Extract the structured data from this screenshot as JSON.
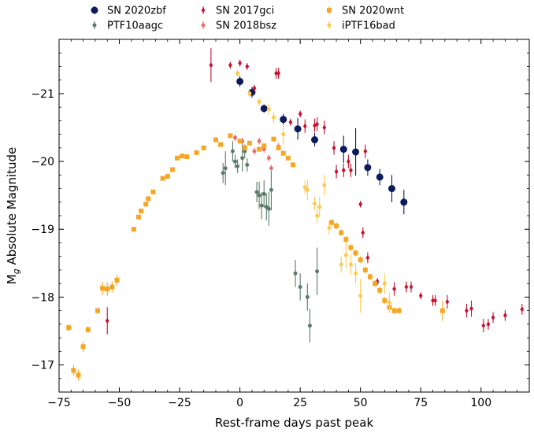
{
  "chart_data": {
    "type": "scatter",
    "xlabel": "Rest-frame days past peak",
    "ylabel": "M",
    "ylabel_subscript": "g",
    "ylabel_suffix": " Absolute Magnitude",
    "xlim": [
      -75,
      120
    ],
    "ylim": [
      -16.6,
      -21.8
    ],
    "y_inverted": true,
    "grid": false,
    "legend_position": "top, above plot",
    "x_ticks": [
      -75,
      -50,
      -25,
      0,
      25,
      50,
      75,
      100
    ],
    "x_tick_labels": [
      "−75",
      "−50",
      "−25",
      "0",
      "25",
      "50",
      "75",
      "100"
    ],
    "y_ticks": [
      -21,
      -20,
      -19,
      -18,
      -17
    ],
    "y_tick_labels": [
      "−21",
      "−20",
      "−19",
      "−18",
      "−17"
    ],
    "series": [
      {
        "name": "SN 2020zbf",
        "color": "#0d1b5e",
        "marker": "circle-large",
        "points": [
          {
            "x": 0,
            "y": -21.18,
            "err": 0.08
          },
          {
            "x": 5,
            "y": -21.02,
            "err": 0.08
          },
          {
            "x": 10,
            "y": -20.78,
            "err": 0.06
          },
          {
            "x": 18,
            "y": -20.62,
            "err": 0.08
          },
          {
            "x": 24,
            "y": -20.48,
            "err": 0.16
          },
          {
            "x": 31,
            "y": -20.32,
            "err": 0.1
          },
          {
            "x": 43,
            "y": -20.18,
            "err": 0.2
          },
          {
            "x": 48,
            "y": -20.14,
            "err": 0.35
          },
          {
            "x": 53,
            "y": -19.91,
            "err": 0.12
          },
          {
            "x": 58,
            "y": -19.77,
            "err": 0.12
          },
          {
            "x": 63,
            "y": -19.6,
            "err": 0.2
          },
          {
            "x": 68,
            "y": -19.4,
            "err": 0.18
          }
        ]
      },
      {
        "name": "PTF10aagc",
        "color": "#5a7a6a",
        "marker": "circle-small",
        "points": [
          {
            "x": -7,
            "y": -19.83,
            "err": 0.15
          },
          {
            "x": -6,
            "y": -19.9,
            "err": 0.25
          },
          {
            "x": -3,
            "y": -20.15,
            "err": 0.15
          },
          {
            "x": -2,
            "y": -20.0,
            "err": 0.1
          },
          {
            "x": -1,
            "y": -19.93,
            "err": 0.1
          },
          {
            "x": 1,
            "y": -20.05,
            "err": 0.2
          },
          {
            "x": 2,
            "y": -20.15,
            "err": 0.1
          },
          {
            "x": 3,
            "y": -19.95,
            "err": 0.1
          },
          {
            "x": 7,
            "y": -19.55,
            "err": 0.15
          },
          {
            "x": 8,
            "y": -19.5,
            "err": 0.2
          },
          {
            "x": 9,
            "y": -19.35,
            "err": 0.2
          },
          {
            "x": 10,
            "y": -19.52,
            "err": 0.2
          },
          {
            "x": 11,
            "y": -19.33,
            "err": 0.2
          },
          {
            "x": 12,
            "y": -19.3,
            "err": 0.25
          },
          {
            "x": 13,
            "y": -19.58,
            "err": 0.3
          },
          {
            "x": 23,
            "y": -18.35,
            "err": 0.2
          },
          {
            "x": 25,
            "y": -18.15,
            "err": 0.2
          },
          {
            "x": 28,
            "y": -18.0,
            "err": 0.2
          },
          {
            "x": 29,
            "y": -17.58,
            "err": 0.25
          },
          {
            "x": 32,
            "y": -18.38,
            "err": 0.35
          }
        ]
      },
      {
        "name": "SN 2017gci",
        "color": "#c8102e",
        "marker": "diamond",
        "points": [
          {
            "x": -12,
            "y": -21.42,
            "err": 0.25
          },
          {
            "x": -4,
            "y": -21.42,
            "err": 0.05
          },
          {
            "x": 0,
            "y": -21.45,
            "err": 0.05
          },
          {
            "x": 3,
            "y": -21.4,
            "err": 0.05
          },
          {
            "x": 6,
            "y": -21.08,
            "err": 0.05
          },
          {
            "x": 15,
            "y": -21.3,
            "err": 0.08
          },
          {
            "x": 16,
            "y": -21.3,
            "err": 0.08
          },
          {
            "x": 21,
            "y": -20.58,
            "err": 0.05
          },
          {
            "x": 25,
            "y": -20.7,
            "err": 0.05
          },
          {
            "x": 27,
            "y": -20.52,
            "err": 0.1
          },
          {
            "x": 31,
            "y": -20.53,
            "err": 0.1
          },
          {
            "x": 32,
            "y": -20.55,
            "err": 0.1
          },
          {
            "x": 35,
            "y": -20.5,
            "err": 0.1
          },
          {
            "x": 39,
            "y": -20.2,
            "err": 0.1
          },
          {
            "x": 40,
            "y": -19.85,
            "err": 0.1
          },
          {
            "x": 43,
            "y": -19.87,
            "err": 0.1
          },
          {
            "x": 45,
            "y": -20.0,
            "err": 0.1
          },
          {
            "x": 46,
            "y": -19.87,
            "err": 0.1
          },
          {
            "x": 50,
            "y": -19.37,
            "err": 0.05
          },
          {
            "x": 51,
            "y": -18.95,
            "err": 0.08
          },
          {
            "x": 52,
            "y": -20.15,
            "err": 0.1
          },
          {
            "x": 53,
            "y": -18.58,
            "err": 0.08
          },
          {
            "x": 57,
            "y": -18.23,
            "err": 0.05
          },
          {
            "x": 64,
            "y": -18.12,
            "err": 0.1
          },
          {
            "x": 69,
            "y": -18.15,
            "err": 0.08
          },
          {
            "x": 71,
            "y": -18.15,
            "err": 0.08
          },
          {
            "x": 75,
            "y": -18.02,
            "err": 0.05
          },
          {
            "x": 80,
            "y": -17.95,
            "err": 0.08
          },
          {
            "x": 81,
            "y": -17.95,
            "err": 0.08
          },
          {
            "x": 86,
            "y": -17.93,
            "err": 0.1
          },
          {
            "x": 94,
            "y": -17.8,
            "err": 0.1
          },
          {
            "x": 96,
            "y": -17.83,
            "err": 0.12
          },
          {
            "x": 101,
            "y": -17.58,
            "err": 0.1
          },
          {
            "x": 103,
            "y": -17.6,
            "err": 0.08
          },
          {
            "x": 105,
            "y": -17.7,
            "err": 0.08
          },
          {
            "x": 110,
            "y": -17.73,
            "err": 0.08
          },
          {
            "x": 117,
            "y": -17.82,
            "err": 0.08
          },
          {
            "x": -55,
            "y": -17.65,
            "err": 0.2
          }
        ]
      },
      {
        "name": "SN 2018bsz",
        "color": "#e8706a",
        "marker": "circle-small",
        "points": [
          {
            "x": -2,
            "y": -20.35,
            "err": 0.05
          },
          {
            "x": 1,
            "y": -20.3,
            "err": 0.05
          },
          {
            "x": 6,
            "y": -20.15,
            "err": 0.05
          },
          {
            "x": 8,
            "y": -20.3,
            "err": 0.05
          },
          {
            "x": 10,
            "y": -20.18,
            "err": 0.05
          },
          {
            "x": 12,
            "y": -20.05,
            "err": 0.05
          },
          {
            "x": 13,
            "y": -19.9,
            "err": 0.05
          },
          {
            "x": 16,
            "y": -20.22,
            "err": 0.05
          }
        ]
      },
      {
        "name": "SN 2020wnt",
        "color": "#f5a623",
        "marker": "square",
        "points": [
          {
            "x": -71,
            "y": -17.55,
            "err": 0.05
          },
          {
            "x": -69,
            "y": -16.92,
            "err": 0.08
          },
          {
            "x": -67,
            "y": -16.85,
            "err": 0.08
          },
          {
            "x": -65,
            "y": -17.27,
            "err": 0.08
          },
          {
            "x": -63,
            "y": -17.52,
            "err": 0.05
          },
          {
            "x": -59,
            "y": -17.8,
            "err": 0.05
          },
          {
            "x": -57,
            "y": -18.13,
            "err": 0.1
          },
          {
            "x": -55,
            "y": -18.12,
            "err": 0.1
          },
          {
            "x": -53,
            "y": -18.15,
            "err": 0.08
          },
          {
            "x": -51,
            "y": -18.25,
            "err": 0.08
          },
          {
            "x": -44,
            "y": -19.0,
            "err": 0.03
          },
          {
            "x": -42,
            "y": -19.18,
            "err": 0.03
          },
          {
            "x": -41,
            "y": -19.27,
            "err": 0.03
          },
          {
            "x": -39,
            "y": -19.37,
            "err": 0.03
          },
          {
            "x": -38,
            "y": -19.45,
            "err": 0.03
          },
          {
            "x": -36,
            "y": -19.55,
            "err": 0.03
          },
          {
            "x": -32,
            "y": -19.75,
            "err": 0.03
          },
          {
            "x": -30,
            "y": -19.78,
            "err": 0.03
          },
          {
            "x": -28,
            "y": -19.88,
            "err": 0.03
          },
          {
            "x": -26,
            "y": -20.05,
            "err": 0.03
          },
          {
            "x": -24,
            "y": -20.08,
            "err": 0.03
          },
          {
            "x": -22,
            "y": -20.07,
            "err": 0.03
          },
          {
            "x": -18,
            "y": -20.13,
            "err": 0.03
          },
          {
            "x": -15,
            "y": -20.2,
            "err": 0.03
          },
          {
            "x": -10,
            "y": -20.32,
            "err": 0.03
          },
          {
            "x": -8,
            "y": -20.25,
            "err": 0.03
          },
          {
            "x": -4,
            "y": -20.38,
            "err": 0.03
          },
          {
            "x": 0,
            "y": -20.3,
            "err": 0.03
          },
          {
            "x": 2,
            "y": -20.2,
            "err": 0.03
          },
          {
            "x": 4,
            "y": -20.27,
            "err": 0.03
          },
          {
            "x": 8,
            "y": -20.18,
            "err": 0.03
          },
          {
            "x": 10,
            "y": -20.23,
            "err": 0.03
          },
          {
            "x": 14,
            "y": -20.33,
            "err": 0.03
          },
          {
            "x": 16,
            "y": -20.2,
            "err": 0.03
          },
          {
            "x": 18,
            "y": -20.12,
            "err": 0.03
          },
          {
            "x": 20,
            "y": -20.05,
            "err": 0.03
          },
          {
            "x": 22,
            "y": -19.95,
            "err": 0.03
          },
          {
            "x": 38,
            "y": -19.1,
            "err": 0.05
          },
          {
            "x": 40,
            "y": -19.05,
            "err": 0.05
          },
          {
            "x": 42,
            "y": -18.95,
            "err": 0.05
          },
          {
            "x": 44,
            "y": -18.85,
            "err": 0.05
          },
          {
            "x": 46,
            "y": -18.73,
            "err": 0.05
          },
          {
            "x": 48,
            "y": -18.65,
            "err": 0.05
          },
          {
            "x": 50,
            "y": -18.55,
            "err": 0.05
          },
          {
            "x": 52,
            "y": -18.4,
            "err": 0.05
          },
          {
            "x": 54,
            "y": -18.3,
            "err": 0.05
          },
          {
            "x": 56,
            "y": -18.2,
            "err": 0.05
          },
          {
            "x": 58,
            "y": -18.1,
            "err": 0.05
          },
          {
            "x": 60,
            "y": -17.95,
            "err": 0.05
          },
          {
            "x": 62,
            "y": -17.85,
            "err": 0.05
          },
          {
            "x": 64,
            "y": -17.8,
            "err": 0.05
          },
          {
            "x": 66,
            "y": -17.8,
            "err": 0.05
          },
          {
            "x": 84,
            "y": -17.8,
            "err": 0.15
          }
        ]
      },
      {
        "name": "iPTF16bad",
        "color": "#ffc94d",
        "marker": "circle-small",
        "points": [
          {
            "x": -1,
            "y": -21.3,
            "err": 0.05
          },
          {
            "x": 4,
            "y": -21.0,
            "err": 0.05
          },
          {
            "x": 8,
            "y": -20.88,
            "err": 0.05
          },
          {
            "x": 12,
            "y": -20.77,
            "err": 0.08
          },
          {
            "x": 14,
            "y": -20.65,
            "err": 0.08
          },
          {
            "x": 18,
            "y": -20.4,
            "err": 0.15
          },
          {
            "x": 27,
            "y": -19.62,
            "err": 0.1
          },
          {
            "x": 28,
            "y": -19.58,
            "err": 0.15
          },
          {
            "x": 31,
            "y": -19.38,
            "err": 0.1
          },
          {
            "x": 32,
            "y": -19.2,
            "err": 0.1
          },
          {
            "x": 33,
            "y": -19.33,
            "err": 0.15
          },
          {
            "x": 35,
            "y": -19.65,
            "err": 0.15
          },
          {
            "x": 37,
            "y": -19.02,
            "err": 0.1
          },
          {
            "x": 42,
            "y": -18.48,
            "err": 0.12
          },
          {
            "x": 44,
            "y": -18.62,
            "err": 0.2
          },
          {
            "x": 46,
            "y": -18.48,
            "err": 0.15
          },
          {
            "x": 48,
            "y": -18.35,
            "err": 0.15
          },
          {
            "x": 50,
            "y": -18.02,
            "err": 0.25
          },
          {
            "x": 60,
            "y": -18.2,
            "err": 0.15
          },
          {
            "x": 62,
            "y": -17.92,
            "err": 0.15
          }
        ]
      }
    ]
  }
}
